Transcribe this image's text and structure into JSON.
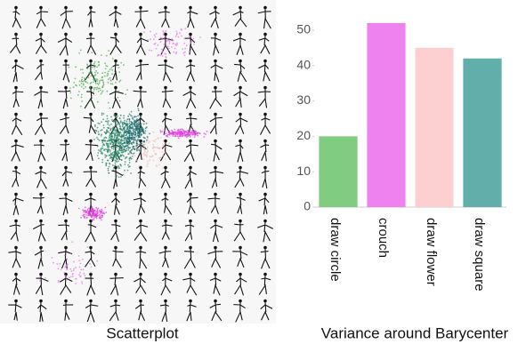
{
  "chart_data": [
    {
      "type": "figure",
      "title": "Scatterplot"
    },
    {
      "type": "bar",
      "title": "Variance around Barycenter",
      "categories": [
        "draw circle",
        "crouch",
        "draw flower",
        "draw square"
      ],
      "values": [
        20,
        52,
        45,
        42
      ],
      "colors": [
        "#80cc80",
        "#ee82ee",
        "#fcd0d0",
        "#62aeaa"
      ],
      "ylim": [
        0,
        55
      ],
      "yticks": [
        0,
        10,
        20,
        30,
        40,
        50
      ]
    }
  ]
}
